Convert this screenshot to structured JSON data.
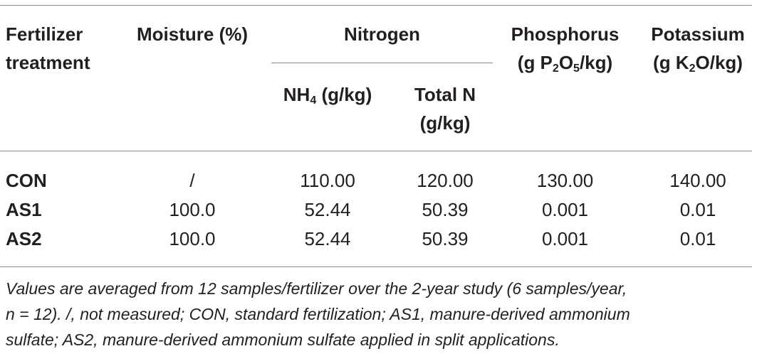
{
  "table": {
    "headers": {
      "treatment_line1": "Fertilizer",
      "treatment_line2": "treatment",
      "moisture": "Moisture (%)",
      "nitrogen": "Nitrogen",
      "nh4_pre": "NH",
      "nh4_sub": "4",
      "nh4_post": " (g/kg)",
      "totaln_line1": "Total N",
      "totaln_line2": "(g/kg)",
      "phosphorus_line1": "Phosphorus",
      "phosphorus_pre": "(g P",
      "phosphorus_sub1": "2",
      "phosphorus_mid": "O",
      "phosphorus_sub2": "5",
      "phosphorus_post": "/kg)",
      "potassium_line1": "Potassium",
      "potassium_pre": "(g K",
      "potassium_sub": "2",
      "potassium_post": "O/kg)"
    },
    "rows": [
      {
        "treatment": "CON",
        "moisture": "/",
        "nh4": "110.00",
        "total_n": "120.00",
        "phosphorus": "130.00",
        "potassium": "140.00"
      },
      {
        "treatment": "AS1",
        "moisture": "100.0",
        "nh4": "52.44",
        "total_n": "50.39",
        "phosphorus": "0.001",
        "potassium": "0.01"
      },
      {
        "treatment": "AS2",
        "moisture": "100.0",
        "nh4": "52.44",
        "total_n": "50.39",
        "phosphorus": "0.001",
        "potassium": "0.01"
      }
    ]
  },
  "footnote": {
    "line1": "Values are averaged from 12 samples/fertilizer over the 2-year study (6 samples/year,",
    "line2": "n = 12). /, not measured; CON, standard fertilization; AS1, manure-derived ammonium",
    "line3": "sulfate; AS2, manure-derived ammonium sulfate applied in split applications."
  }
}
